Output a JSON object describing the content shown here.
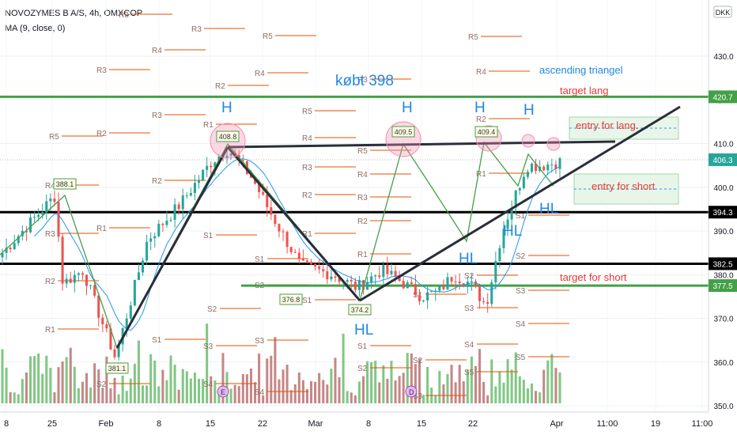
{
  "header": {
    "symbol_line": "NOVOZYMES B A/S, 4h, OMXCOP",
    "indicator_line": "MA (9, close, 0)",
    "currency": "DKK"
  },
  "colors": {
    "up": "#26a69a",
    "down": "#ef5350",
    "vol_up": "#81c784",
    "vol_down": "#c58787",
    "ma": "#2196f3",
    "pivot": "#e65100",
    "green_level": "#43a047",
    "annot_blue": "#1e88e5",
    "annot_red": "#e53935",
    "trend": "#2a2e39",
    "pattern": "#43a047",
    "circle": "#f48fb1",
    "box": "#a5d6a7"
  },
  "chart_data": {
    "type": "candlestick",
    "title": "",
    "yaxis": {
      "ticks": [
        350,
        360,
        370,
        380,
        390,
        400,
        410,
        420,
        430
      ],
      "range": [
        349,
        438
      ]
    },
    "xaxis": {
      "tick_labels": [
        "8",
        "25",
        "Feb",
        "8",
        "15",
        "22",
        "Mar",
        "8",
        "15",
        "22",
        "Apr",
        "11:00",
        "19",
        "11:00"
      ]
    },
    "price_levels": [
      {
        "value": 420.7,
        "label": "420.7",
        "style": "green"
      },
      {
        "value": 406.3,
        "label": "406.3",
        "style": "last"
      },
      {
        "value": 394.3,
        "label": "394.3",
        "style": "black"
      },
      {
        "value": 382.5,
        "label": "382.5",
        "style": "black"
      },
      {
        "value": 377.5,
        "label": "377.5",
        "style": "green"
      }
    ],
    "peak_labels": [
      "388.1",
      "381.1",
      "408.8",
      "376.8",
      "374.2",
      "409.5",
      "409.4"
    ],
    "pivot_labels": [
      "R1",
      "R2",
      "R3",
      "R4",
      "R5",
      "P",
      "S1",
      "S2",
      "S3",
      "S4",
      "S5"
    ],
    "annotations": {
      "kobt": "købt 398",
      "ascending": "ascending triangel",
      "target_lang": "target lang",
      "entry_lang": "entry for lang.",
      "entry_short": "entry for short",
      "target_short": "target for short",
      "H": "H",
      "HL": "HL",
      "E": "E",
      "D": "D"
    }
  }
}
